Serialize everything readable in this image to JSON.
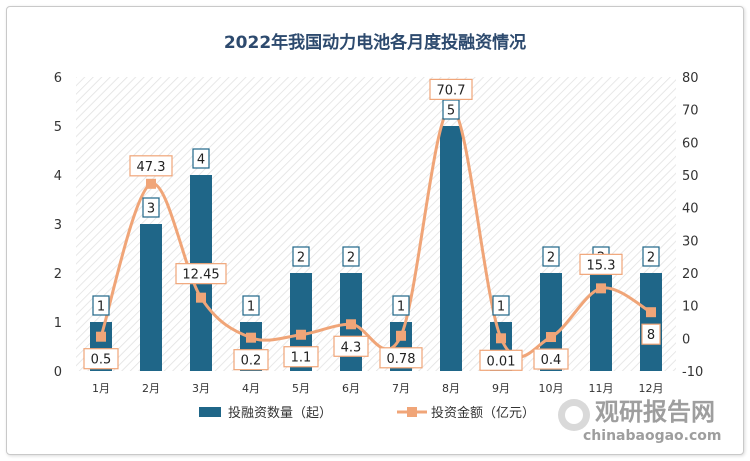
{
  "chart_data": {
    "type": "bar",
    "title": "2022年我国动力电池各月度投融资情况",
    "categories": [
      "1月",
      "2月",
      "3月",
      "4月",
      "5月",
      "6月",
      "7月",
      "8月",
      "9月",
      "10月",
      "11月",
      "12月"
    ],
    "series": [
      {
        "name": "投融资数量（起）",
        "type": "bar",
        "axis": "left",
        "color": "#1f6688",
        "values": [
          1,
          3,
          4,
          1,
          2,
          2,
          1,
          5,
          1,
          2,
          2,
          2
        ],
        "labels": [
          "1",
          "3",
          "4",
          "1",
          "2",
          "2",
          "1",
          "5",
          "1",
          "2",
          "2",
          "2"
        ]
      },
      {
        "name": "投资金额（亿元）",
        "type": "line",
        "smooth": true,
        "axis": "right",
        "color": "#f0a578",
        "values": [
          0.5,
          47.3,
          12.45,
          0.2,
          1.1,
          4.3,
          0.78,
          70.7,
          0.01,
          0.4,
          15.3,
          8
        ],
        "labels": [
          "0.5",
          "47.3",
          "12.45",
          "0.2",
          "1.1",
          "4.3",
          "0.78",
          "70.7",
          "0.01",
          "0.4",
          "15.3",
          "8"
        ]
      }
    ],
    "y_left": {
      "min": 0,
      "max": 6,
      "ticks": [
        "0",
        "1",
        "2",
        "3",
        "4",
        "5",
        "6"
      ]
    },
    "y_right": {
      "min": -10,
      "max": 80,
      "ticks": [
        "-10",
        "0",
        "10",
        "20",
        "30",
        "40",
        "50",
        "60",
        "70",
        "80"
      ]
    },
    "grid": false,
    "plot_background": "diagonal-hatch",
    "legend_position": "bottom"
  },
  "watermark": {
    "name": "观研报告网",
    "url": "chinabaogao.com"
  }
}
